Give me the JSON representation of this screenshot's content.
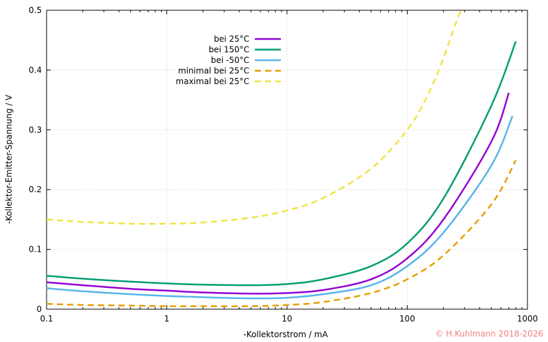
{
  "chart_data": {
    "type": "line",
    "xscale": "log",
    "xlim": [
      0.1,
      1000
    ],
    "ylim": [
      0,
      0.5
    ],
    "xlabel": "-Kollektorstrom / mA",
    "ylabel": "-Kollektor-Emitter-Spannung / V",
    "x_tick_labels": [
      "0.1",
      "1",
      "10",
      "100",
      "1000"
    ],
    "x_ticks": [
      0.1,
      1,
      10,
      100,
      1000
    ],
    "y_tick_labels": [
      "0",
      "0.1",
      "0.2",
      "0.3",
      "0.4",
      "0.5"
    ],
    "y_ticks": [
      0,
      0.1,
      0.2,
      0.3,
      0.4,
      0.5
    ],
    "grid": true,
    "legend_position": "top-center",
    "series": [
      {
        "name": "bei 25°C",
        "color": "#9400d3",
        "dash": "solid",
        "x": [
          0.1,
          0.2,
          0.5,
          1,
          2,
          5,
          10,
          20,
          50,
          100,
          200,
          500,
          700
        ],
        "y": [
          0.045,
          0.04,
          0.034,
          0.031,
          0.028,
          0.026,
          0.027,
          0.032,
          0.05,
          0.085,
          0.15,
          0.28,
          0.362
        ]
      },
      {
        "name": "bei 150°C",
        "color": "#009e73",
        "dash": "solid",
        "x": [
          0.1,
          0.2,
          0.5,
          1,
          2,
          5,
          10,
          20,
          50,
          100,
          200,
          500,
          800
        ],
        "y": [
          0.056,
          0.051,
          0.046,
          0.043,
          0.041,
          0.04,
          0.042,
          0.05,
          0.072,
          0.11,
          0.185,
          0.34,
          0.448
        ]
      },
      {
        "name": "bei -50°C",
        "color": "#56b4e9",
        "dash": "solid",
        "x": [
          0.1,
          0.2,
          0.5,
          1,
          2,
          5,
          10,
          20,
          50,
          100,
          200,
          500,
          750
        ],
        "y": [
          0.035,
          0.03,
          0.025,
          0.022,
          0.02,
          0.018,
          0.019,
          0.025,
          0.04,
          0.072,
          0.128,
          0.24,
          0.323
        ]
      },
      {
        "name": "minimal bei 25°C",
        "color": "#e69f00",
        "dash": "dashed",
        "x": [
          0.1,
          0.2,
          0.5,
          1,
          2,
          5,
          10,
          20,
          50,
          100,
          200,
          500,
          800
        ],
        "y": [
          0.009,
          0.007,
          0.006,
          0.005,
          0.005,
          0.005,
          0.007,
          0.012,
          0.027,
          0.05,
          0.09,
          0.175,
          0.249
        ]
      },
      {
        "name": "maximal bei 25°C",
        "color": "#f0e442",
        "dash": "dashed",
        "x": [
          0.1,
          0.2,
          0.5,
          1,
          2,
          5,
          10,
          20,
          50,
          100,
          150,
          200,
          250,
          280
        ],
        "y": [
          0.15,
          0.146,
          0.143,
          0.143,
          0.145,
          0.153,
          0.165,
          0.186,
          0.235,
          0.3,
          0.36,
          0.42,
          0.475,
          0.5
        ]
      }
    ]
  },
  "copyright": "© H.Kuhlmann 2018-2026"
}
